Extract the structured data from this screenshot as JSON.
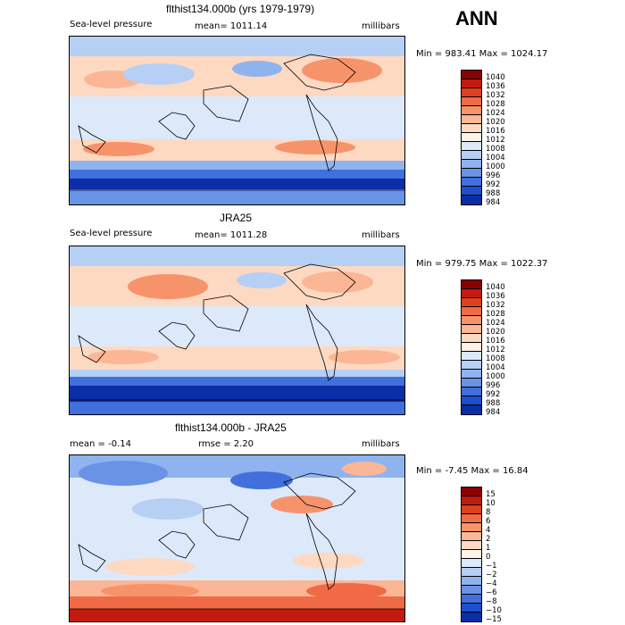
{
  "header": {
    "season": "ANN"
  },
  "panels": [
    {
      "title": "flthist134.000b (yrs 1979-1979)",
      "variable": "Sea-level pressure",
      "mean_label": "mean= 1011.14",
      "units": "millibars",
      "minmax": "Min = 983.41 Max = 1024.17"
    },
    {
      "title": "JRA25",
      "variable": "Sea-level pressure",
      "mean_label": "mean= 1011.28",
      "units": "millibars",
      "minmax": "Min = 979.75 Max = 1022.37"
    },
    {
      "title": "flthist134.000b - JRA25",
      "mean_label": "mean =  -0.14",
      "rmse_label": "rmse =    2.20",
      "units": "millibars",
      "minmax": "Min =  -7.45 Max =  16.84"
    }
  ],
  "chart_data": [
    {
      "type": "heatmap",
      "title": "flthist134.000b (yrs 1979-1979)",
      "variable": "Sea-level pressure",
      "units": "millibars",
      "mean": 1011.14,
      "min": 983.41,
      "max": 1024.17,
      "levels": [
        1040,
        1036,
        1032,
        1028,
        1024,
        1020,
        1016,
        1012,
        1008,
        1004,
        1000,
        996,
        992,
        988,
        984
      ],
      "colors": [
        "#8b0000",
        "#c11a10",
        "#e0401e",
        "#f06b45",
        "#f7936b",
        "#fbb696",
        "#fdd9c2",
        "#fff2e8",
        "#dce9fb",
        "#b5cff5",
        "#8fb3ef",
        "#6a93e6",
        "#4170dd",
        "#1d4fcf",
        "#0a2da8"
      ]
    },
    {
      "type": "heatmap",
      "title": "JRA25",
      "variable": "Sea-level pressure",
      "units": "millibars",
      "mean": 1011.28,
      "min": 979.75,
      "max": 1022.37,
      "levels": [
        1040,
        1036,
        1032,
        1028,
        1024,
        1020,
        1016,
        1012,
        1008,
        1004,
        1000,
        996,
        992,
        988,
        984
      ],
      "colors": [
        "#8b0000",
        "#c11a10",
        "#e0401e",
        "#f06b45",
        "#f7936b",
        "#fbb696",
        "#fdd9c2",
        "#fff2e8",
        "#dce9fb",
        "#b5cff5",
        "#8fb3ef",
        "#6a93e6",
        "#4170dd",
        "#1d4fcf",
        "#0a2da8"
      ]
    },
    {
      "type": "heatmap",
      "title": "flthist134.000b - JRA25",
      "units": "millibars",
      "mean": -0.14,
      "rmse": 2.2,
      "min": -7.45,
      "max": 16.84,
      "levels": [
        "15",
        "10",
        "8",
        "6",
        "4",
        "2",
        "1",
        "0",
        "−1",
        "−2",
        "−4",
        "−6",
        "−8",
        "−10",
        "−15"
      ],
      "colors": [
        "#8b0000",
        "#c11a10",
        "#e0401e",
        "#f06b45",
        "#f7936b",
        "#fbb696",
        "#fdd9c2",
        "#fff2e8",
        "#dce9fb",
        "#b5cff5",
        "#8fb3ef",
        "#6a93e6",
        "#4170dd",
        "#1d4fcf",
        "#0a2da8"
      ]
    }
  ]
}
